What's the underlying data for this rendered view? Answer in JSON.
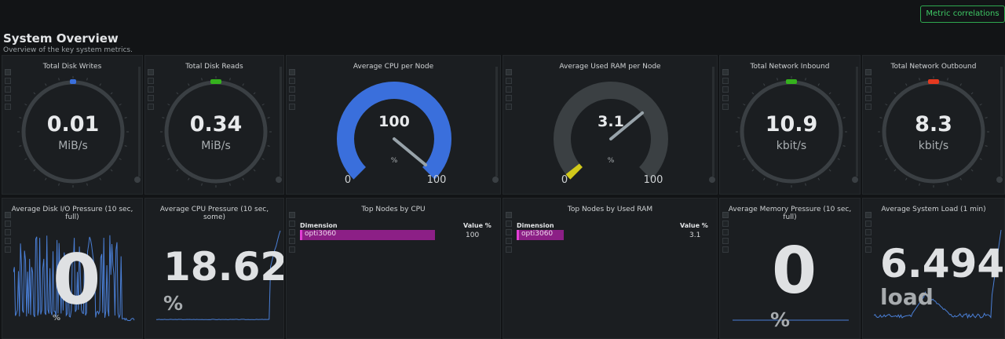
{
  "header": {
    "title": "System Overview",
    "subtitle": "Overview of the key system metrics.",
    "metric_correlations_label": "Metric correlations"
  },
  "colors": {
    "blue": "#3a6fdc",
    "green": "#35b21d",
    "red": "#e5391f",
    "yellow": "#d1c91a",
    "spark": "#4a7fd6",
    "bar": "#8c1f86"
  },
  "gauges": [
    {
      "title": "Total Disk Writes",
      "value": "0.01",
      "unit": "MiB/s",
      "indicator": "blue"
    },
    {
      "title": "Total Disk Reads",
      "value": "0.34",
      "unit": "MiB/s",
      "indicator": "green"
    },
    {
      "title": "Total Network Inbound",
      "value": "10.9",
      "unit": "kbit/s",
      "indicator": "green"
    },
    {
      "title": "Total Network Outbound",
      "value": "8.3",
      "unit": "kbit/s",
      "indicator": "red"
    }
  ],
  "arc_gauges": [
    {
      "title": "Average CPU per Node",
      "value": "100",
      "unit": "%",
      "min": "0",
      "max": "100",
      "fraction": 1.0
    },
    {
      "title": "Average Used RAM per Node",
      "value": "3.1",
      "unit": "%",
      "min": "0",
      "max": "100",
      "fraction": 0.031
    }
  ],
  "easy_piecharts": [
    {
      "title": "Average Disk I/O Pressure (10 sec, full)",
      "value": "0",
      "unit": "%"
    },
    {
      "title": "Average CPU Pressure (10 sec, some)",
      "value": "18.62",
      "unit": "%"
    },
    {
      "title": "Average Memory Pressure (10 sec, full)",
      "value": "0",
      "unit": "%"
    },
    {
      "title": "Average System Load (1 min)",
      "value": "6.494",
      "unit": "load"
    }
  ],
  "tables": [
    {
      "title": "Top Nodes by CPU",
      "dim_header": "Dimension",
      "val_header": "Value %",
      "row": {
        "name": "opti3060",
        "value": "100"
      }
    },
    {
      "title": "Top Nodes by Used RAM",
      "dim_header": "Dimension",
      "val_header": "Value %",
      "row": {
        "name": "opti3060",
        "value": "3.1"
      }
    }
  ]
}
